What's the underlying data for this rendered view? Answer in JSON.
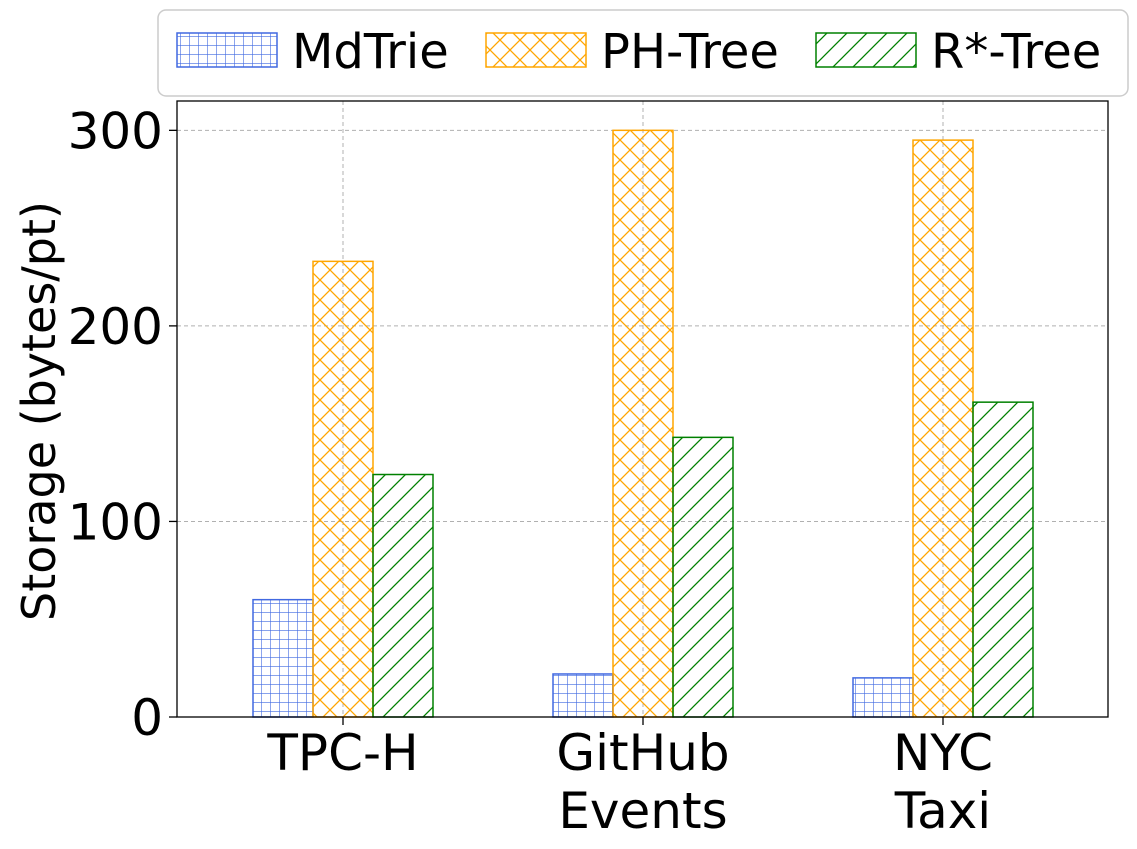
{
  "chart_data": {
    "type": "bar",
    "categories": [
      [
        "TPC-H"
      ],
      [
        "GitHub",
        "Events"
      ],
      [
        "NYC",
        "Taxi"
      ]
    ],
    "series": [
      {
        "name": "MdTrie",
        "values": [
          60,
          22,
          20
        ],
        "color": "#4169e1",
        "pattern": "grid"
      },
      {
        "name": "PH-Tree",
        "values": [
          233,
          300,
          295
        ],
        "color": "#ffa500",
        "pattern": "crosshatch"
      },
      {
        "name": "R*-Tree",
        "values": [
          124,
          143,
          161
        ],
        "color": "#008000",
        "pattern": "diagonal"
      }
    ],
    "title": "",
    "xlabel": "",
    "ylabel": "Storage (bytes/pt)",
    "ylim": [
      0,
      315
    ],
    "yticks": [
      0,
      100,
      200,
      300
    ],
    "grid": true,
    "legend_position": "top"
  }
}
